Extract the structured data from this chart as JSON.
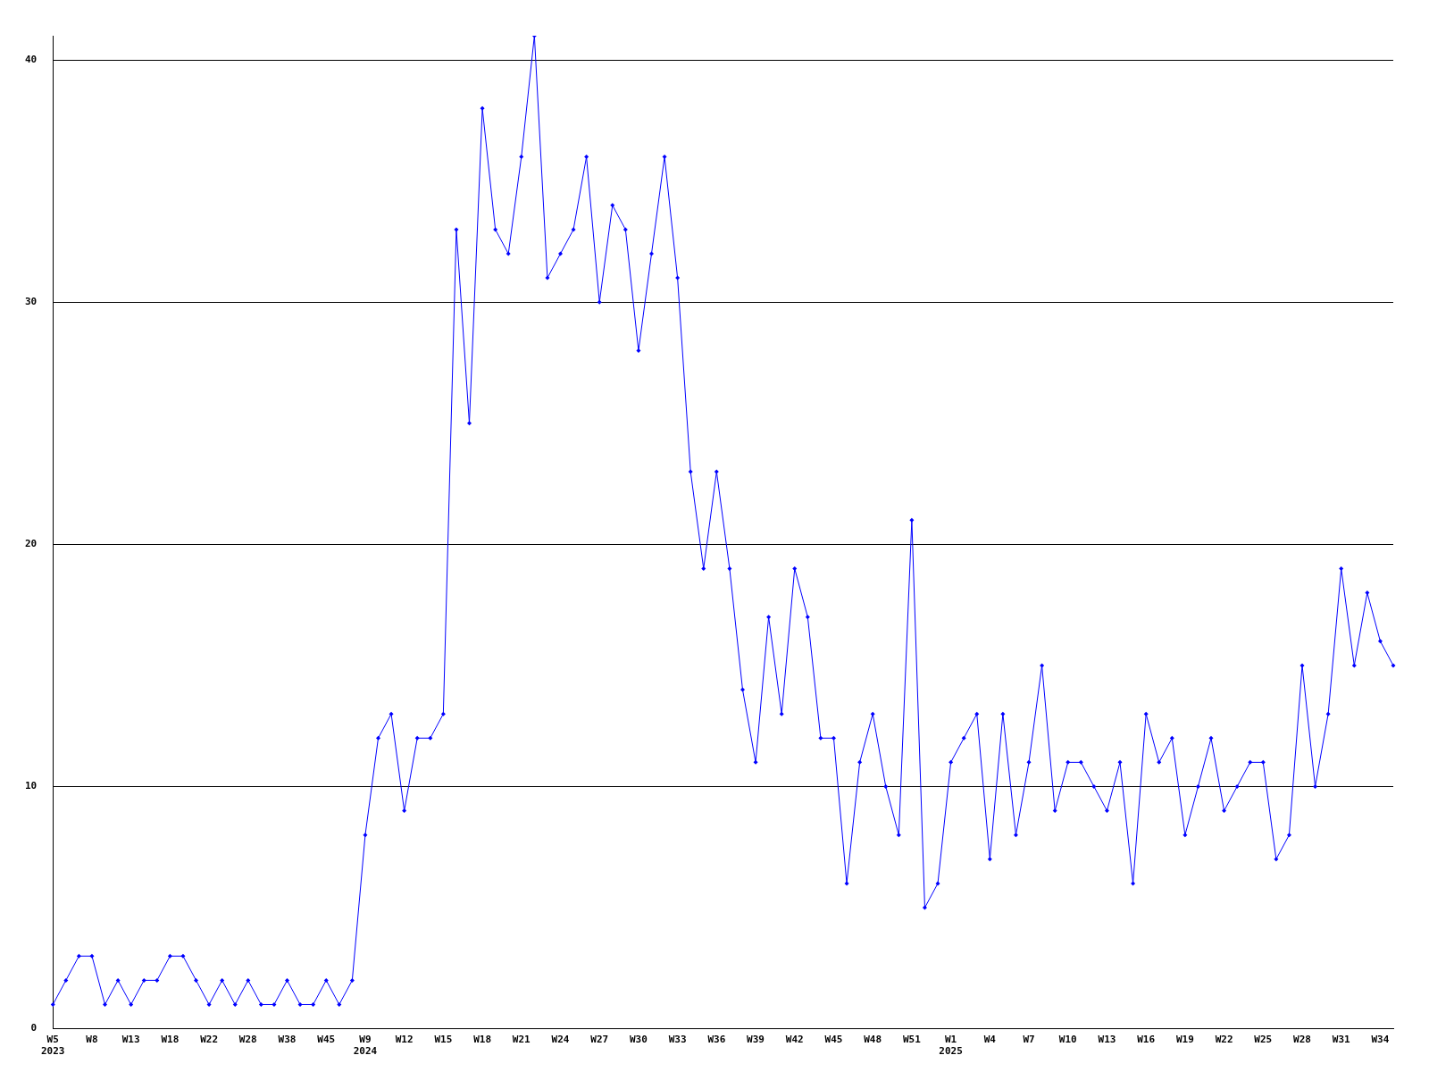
{
  "chart_data": {
    "type": "line",
    "categories": [
      "W5\n2023",
      null,
      null,
      "W8",
      null,
      null,
      "W13",
      null,
      null,
      "W18",
      null,
      null,
      "W22",
      null,
      null,
      "W28",
      null,
      null,
      "W38",
      null,
      null,
      "W45",
      null,
      null,
      "W9\n2024",
      null,
      null,
      "W12",
      null,
      null,
      "W15",
      null,
      null,
      "W18",
      null,
      null,
      "W21",
      null,
      null,
      "W24",
      null,
      null,
      "W27",
      null,
      null,
      "W30",
      null,
      null,
      "W33",
      null,
      null,
      "W36",
      null,
      null,
      "W39",
      null,
      null,
      "W42",
      null,
      null,
      "W45",
      null,
      null,
      "W48",
      null,
      null,
      "W51",
      null,
      null,
      "W1\n2025",
      null,
      null,
      "W4",
      null,
      null,
      "W7",
      null,
      null,
      "W10",
      null,
      null,
      "W13",
      null,
      null,
      "W16",
      null,
      null,
      "W19",
      null,
      null,
      "W22",
      null,
      null,
      "W25",
      null,
      null,
      "W28",
      null,
      null,
      "W31",
      null,
      null,
      "W34",
      null
    ],
    "series": [
      {
        "color": "#0000ff",
        "values": [
          1,
          2,
          3,
          3,
          1,
          2,
          1,
          2,
          2,
          3,
          3,
          2,
          1,
          2,
          1,
          2,
          1,
          1,
          2,
          1,
          1,
          2,
          1,
          2,
          8,
          12,
          13,
          9,
          12,
          12,
          13,
          33,
          25,
          38,
          33,
          32,
          36,
          41,
          31,
          32,
          33,
          36,
          30,
          34,
          33,
          28,
          32,
          36,
          31,
          23,
          19,
          23,
          19,
          14,
          11,
          17,
          13,
          19,
          17,
          12,
          12,
          6,
          11,
          13,
          10,
          8,
          21,
          5,
          6,
          11,
          12,
          13,
          7,
          13,
          8,
          11,
          15,
          9,
          11,
          11,
          10,
          9,
          11,
          6,
          13,
          11,
          12,
          8,
          10,
          12,
          9,
          10,
          11,
          11,
          7,
          8,
          15,
          10,
          13,
          19,
          15,
          18,
          16,
          15
        ]
      }
    ],
    "ylim": [
      0,
      41
    ],
    "yticks": [
      0,
      10,
      20,
      30,
      40
    ],
    "grid": "y",
    "legend": false,
    "marker": "diamond",
    "line_style": "solid"
  }
}
